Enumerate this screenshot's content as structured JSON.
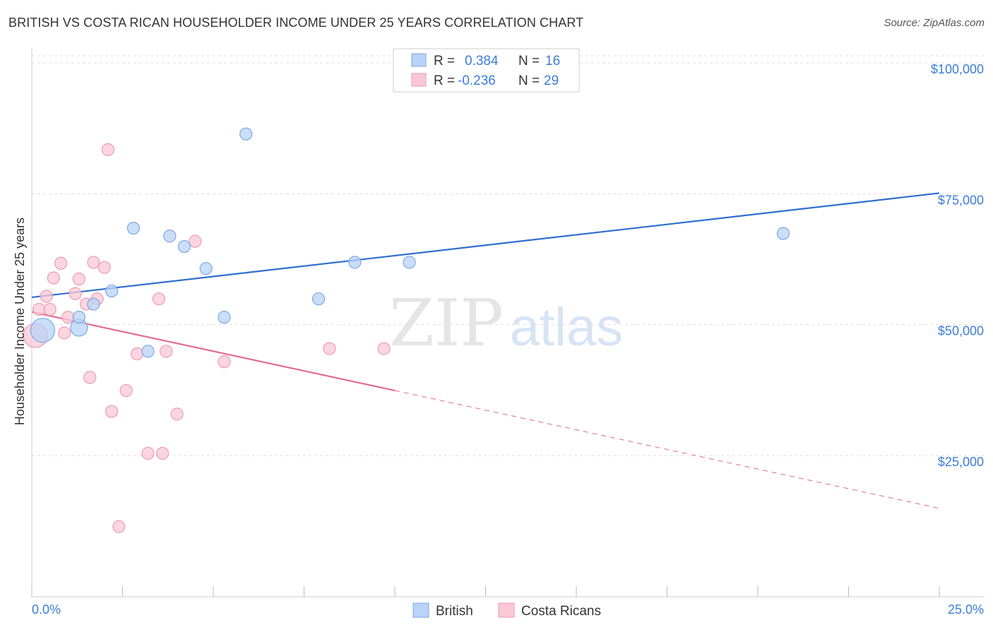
{
  "title": "BRITISH VS COSTA RICAN HOUSEHOLDER INCOME UNDER 25 YEARS CORRELATION CHART",
  "source": "Source: ZipAtlas.com",
  "watermark": {
    "zip": "ZIP",
    "atlas": "atlas"
  },
  "colors": {
    "british_fill": "#b8d3f5",
    "british_stroke": "#7aa8e6",
    "british_line": "#2e6fd0",
    "costa_fill": "#f9c8d6",
    "costa_stroke": "#ee9ab2",
    "costa_line": "#e36b94",
    "grid": "#dddddd",
    "tick_text": "#3b7dd8"
  },
  "legend": {
    "rows": [
      {
        "r_label": "R =",
        "r_value": "0.384",
        "n_label": "N =",
        "n_value": "16"
      },
      {
        "r_label": "R =",
        "r_value": "-0.236",
        "n_label": "N =",
        "n_value": "29"
      }
    ]
  },
  "chart_data": {
    "type": "scatter",
    "title": "BRITISH VS COSTA RICAN HOUSEHOLDER INCOME UNDER 25 YEARS CORRELATION CHART",
    "xlabel": "",
    "ylabel": "Householder Income Under 25 years",
    "xlim": [
      0,
      25
    ],
    "ylim": [
      0,
      105000
    ],
    "x_tick_labels": [
      "0.0%",
      "25.0%"
    ],
    "y_ticks": [
      25000,
      50000,
      75000,
      100000
    ],
    "y_tick_labels": [
      "$25,000",
      "$50,000",
      "$75,000",
      "$100,000"
    ],
    "grid": true,
    "series": [
      {
        "name": "British",
        "r": 0.384,
        "n": 16,
        "points": [
          {
            "x": 0.3,
            "y": 50000,
            "size": "large"
          },
          {
            "x": 1.3,
            "y": 50500,
            "size": "medium"
          },
          {
            "x": 1.3,
            "y": 52500
          },
          {
            "x": 1.7,
            "y": 55000
          },
          {
            "x": 2.2,
            "y": 57500
          },
          {
            "x": 2.8,
            "y": 69500
          },
          {
            "x": 3.2,
            "y": 46000
          },
          {
            "x": 3.8,
            "y": 68000
          },
          {
            "x": 4.2,
            "y": 66000
          },
          {
            "x": 4.8,
            "y": 61800
          },
          {
            "x": 5.3,
            "y": 52500
          },
          {
            "x": 5.9,
            "y": 87500
          },
          {
            "x": 7.9,
            "y": 56000
          },
          {
            "x": 8.9,
            "y": 63000
          },
          {
            "x": 10.4,
            "y": 63000
          },
          {
            "x": 20.7,
            "y": 68500
          }
        ],
        "trend": {
          "x0": 0,
          "y0": 56300,
          "x1": 25,
          "y1": 76200
        }
      },
      {
        "name": "Costa Ricans",
        "r": -0.236,
        "n": 29,
        "points": [
          {
            "x": 0.1,
            "y": 49000,
            "size": "large"
          },
          {
            "x": 0.2,
            "y": 54000
          },
          {
            "x": 0.4,
            "y": 56500
          },
          {
            "x": 0.5,
            "y": 54000
          },
          {
            "x": 0.6,
            "y": 60000
          },
          {
            "x": 0.8,
            "y": 62800
          },
          {
            "x": 0.9,
            "y": 49500
          },
          {
            "x": 1.0,
            "y": 52500
          },
          {
            "x": 1.2,
            "y": 57000
          },
          {
            "x": 1.3,
            "y": 59800
          },
          {
            "x": 1.5,
            "y": 55000
          },
          {
            "x": 1.6,
            "y": 41000
          },
          {
            "x": 1.7,
            "y": 63000
          },
          {
            "x": 1.8,
            "y": 56000
          },
          {
            "x": 2.0,
            "y": 62000
          },
          {
            "x": 2.1,
            "y": 84500
          },
          {
            "x": 2.2,
            "y": 34500
          },
          {
            "x": 2.4,
            "y": 12500
          },
          {
            "x": 2.6,
            "y": 38500
          },
          {
            "x": 2.9,
            "y": 45500
          },
          {
            "x": 3.2,
            "y": 26500
          },
          {
            "x": 3.5,
            "y": 56000
          },
          {
            "x": 3.6,
            "y": 26500
          },
          {
            "x": 3.7,
            "y": 46000
          },
          {
            "x": 4.0,
            "y": 34000
          },
          {
            "x": 4.5,
            "y": 67000
          },
          {
            "x": 5.3,
            "y": 44000
          },
          {
            "x": 8.2,
            "y": 46500
          },
          {
            "x": 9.7,
            "y": 46500
          }
        ],
        "trend": {
          "x0": 0,
          "y0": 53500,
          "x1": 10,
          "y1": 38500,
          "dash_x1": 25,
          "dash_y1": 16000
        }
      }
    ]
  },
  "bottom_legend": [
    {
      "label": "British"
    },
    {
      "label": "Costa Ricans"
    }
  ]
}
